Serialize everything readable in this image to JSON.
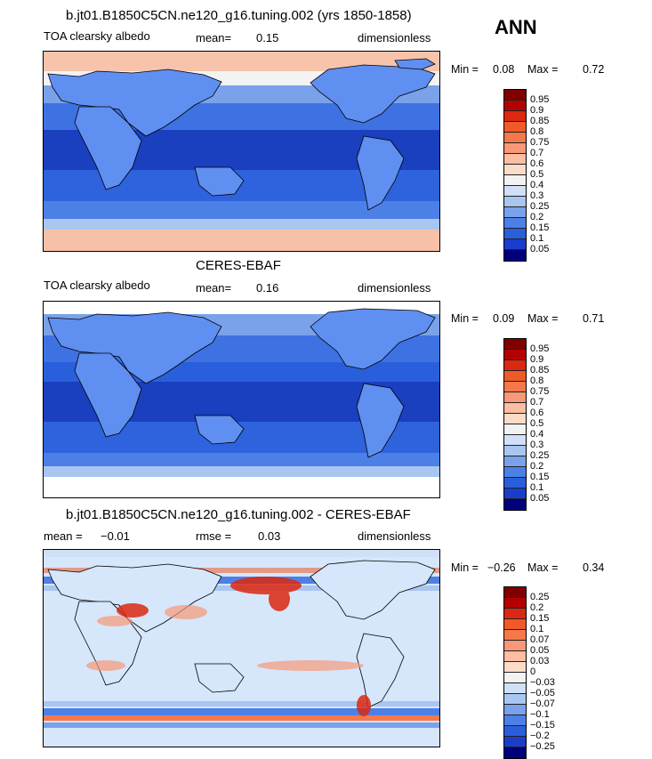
{
  "season": "ANN",
  "panels": [
    {
      "title": "b.jt01.B1850C5CN.ne120_g16.tuning.002 (yrs 1850-1858)",
      "left": "TOA clearsky albedo",
      "mid_label": "mean=",
      "mid_value": "0.15",
      "right": "dimensionless",
      "min_label": "Min =",
      "min_value": "0.08",
      "max_label": "Max =",
      "max_value": "0.72",
      "colorbar_labels": [
        "0.95",
        "0.9",
        "0.85",
        "0.8",
        "0.75",
        "0.7",
        "0.6",
        "0.5",
        "0.4",
        "0.3",
        "0.25",
        "0.2",
        "0.15",
        "0.1",
        "0.05"
      ]
    },
    {
      "title": "CERES-EBAF",
      "left": "TOA clearsky albedo",
      "mid_label": "mean=",
      "mid_value": "0.16",
      "right": "dimensionless",
      "min_label": "Min =",
      "min_value": "0.09",
      "max_label": "Max =",
      "max_value": "0.71",
      "colorbar_labels": [
        "0.95",
        "0.9",
        "0.85",
        "0.8",
        "0.75",
        "0.7",
        "0.6",
        "0.5",
        "0.4",
        "0.3",
        "0.25",
        "0.2",
        "0.15",
        "0.1",
        "0.05"
      ]
    },
    {
      "title": "b.jt01.B1850C5CN.ne120_g16.tuning.002 - CERES-EBAF",
      "left": "mean =",
      "left_value": "−0.01",
      "mid_label": "rmse =",
      "mid_value": "0.03",
      "right": "dimensionless",
      "min_label": "Min =",
      "min_value": "−0.26",
      "max_label": "Max =",
      "max_value": "0.34",
      "colorbar_labels": [
        "0.25",
        "0.2",
        "0.15",
        "0.1",
        "0.07",
        "0.05",
        "0.03",
        "0",
        "−0.03",
        "−0.05",
        "−0.07",
        "−0.1",
        "−0.15",
        "−0.2",
        "−0.25"
      ]
    }
  ],
  "colors": {
    "colorbar": [
      "#800000",
      "#b40000",
      "#dc2810",
      "#f05a28",
      "#f5784a",
      "#f89878",
      "#fbbea2",
      "#fcdcc8",
      "#f2f2f2",
      "#cfe0f7",
      "#a8c6f0",
      "#7aa2eb",
      "#4d80e6",
      "#2a5fdc",
      "#1a3ecb",
      "#0b1e9b",
      "#00007a"
    ],
    "ocean_tropics": "#1f4fcf",
    "ocean_mid": "#2e63dd",
    "ocean_deep": "#1a3fbf",
    "land_light": "#5f8ff0",
    "polar": "#f7c0a8",
    "diff_neutral": "#d6e6fb"
  }
}
